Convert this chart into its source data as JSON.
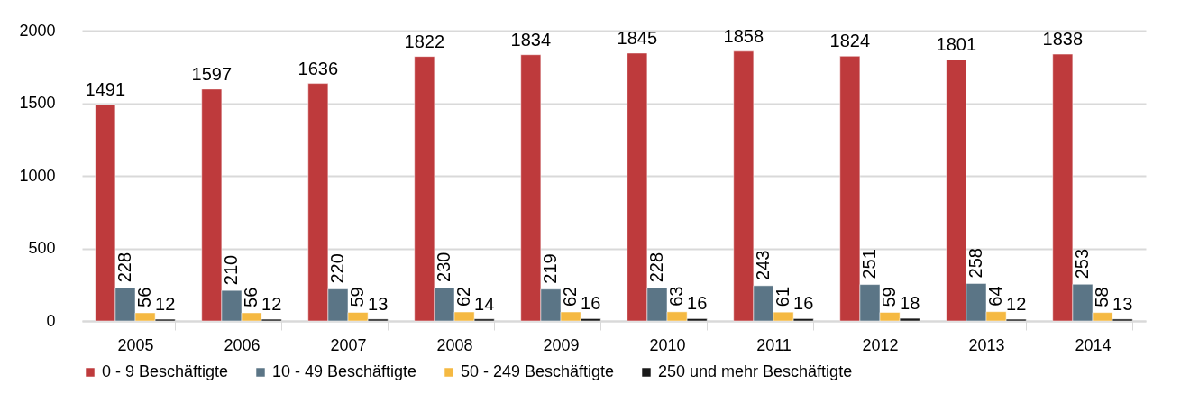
{
  "chart_data": {
    "type": "bar",
    "categories": [
      "2005",
      "2006",
      "2007",
      "2008",
      "2009",
      "2010",
      "2011",
      "2012",
      "2013",
      "2014"
    ],
    "series": [
      {
        "name": "0 - 9 Beschäftigte",
        "color": "#be3a3c",
        "values": [
          1491,
          1597,
          1636,
          1822,
          1834,
          1845,
          1858,
          1824,
          1801,
          1838
        ]
      },
      {
        "name": "10 - 49 Beschäftigte",
        "color": "#5b7586",
        "values": [
          228,
          210,
          220,
          230,
          219,
          228,
          243,
          251,
          258,
          253
        ]
      },
      {
        "name": "50 - 249 Beschäftigte",
        "color": "#f5b942",
        "values": [
          56,
          56,
          59,
          62,
          62,
          63,
          61,
          59,
          64,
          58
        ]
      },
      {
        "name": "250 und mehr Beschäftigte",
        "color": "#1a1a1a",
        "values": [
          12,
          12,
          13,
          14,
          16,
          16,
          16,
          18,
          12,
          13
        ]
      }
    ],
    "ylim": [
      0,
      2000
    ],
    "yticks": [
      0,
      500,
      1000,
      1500,
      2000
    ],
    "grid": "y",
    "legend": "bottom",
    "data_labels": true
  }
}
